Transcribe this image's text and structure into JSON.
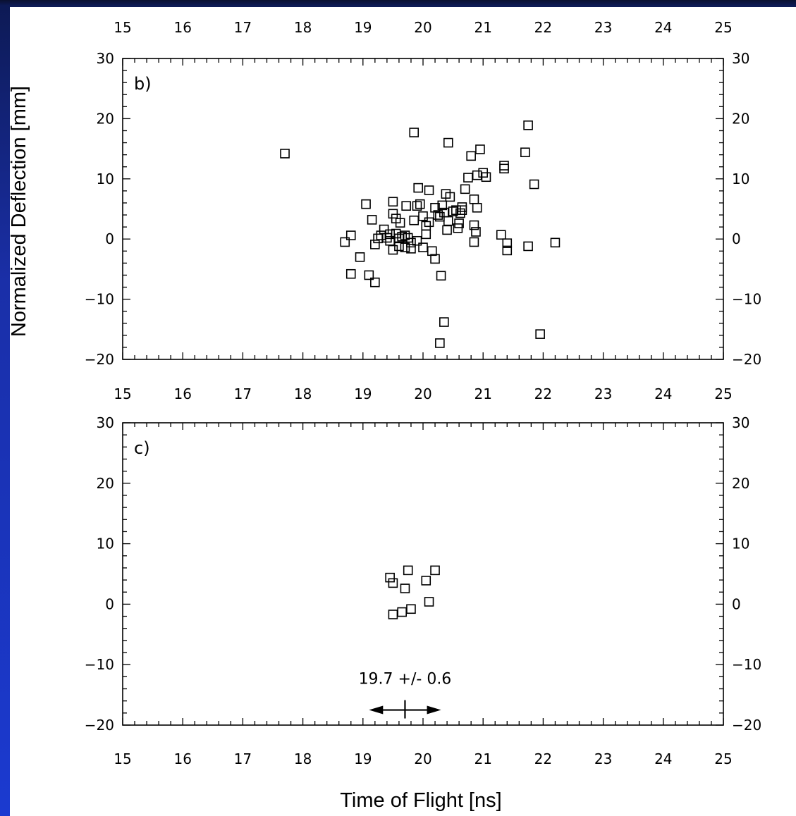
{
  "chart_data": [
    {
      "type": "scatter",
      "panel_label": "b)",
      "marker": "open-square",
      "xlim": [
        15,
        25
      ],
      "ylim": [
        -20,
        30
      ],
      "x_ticks": [
        15,
        16,
        17,
        18,
        19,
        20,
        21,
        22,
        23,
        24,
        25
      ],
      "y_ticks": [
        30,
        20,
        10,
        0,
        -10,
        -20
      ],
      "ylabel": "Normalized Deflection [mm]",
      "points": [
        [
          17.7,
          14.2
        ],
        [
          18.7,
          -0.5
        ],
        [
          18.8,
          0.6
        ],
        [
          18.8,
          -5.8
        ],
        [
          18.95,
          -3.0
        ],
        [
          19.05,
          5.8
        ],
        [
          19.1,
          -6.0
        ],
        [
          19.15,
          3.2
        ],
        [
          19.2,
          -7.2
        ],
        [
          19.2,
          -0.9
        ],
        [
          19.25,
          0.1
        ],
        [
          19.3,
          0.6
        ],
        [
          19.35,
          1.6
        ],
        [
          19.4,
          0.2
        ],
        [
          19.45,
          -0.3
        ],
        [
          19.45,
          0.8
        ],
        [
          19.5,
          6.2
        ],
        [
          19.5,
          4.2
        ],
        [
          19.5,
          -1.8
        ],
        [
          19.55,
          0.9
        ],
        [
          19.55,
          3.4
        ],
        [
          19.6,
          0.1
        ],
        [
          19.6,
          -1.2
        ],
        [
          19.62,
          2.7
        ],
        [
          19.65,
          0.4
        ],
        [
          19.7,
          -1.4
        ],
        [
          19.7,
          0.6
        ],
        [
          19.72,
          5.5
        ],
        [
          19.75,
          0.2
        ],
        [
          19.8,
          -1.6
        ],
        [
          19.8,
          -0.6
        ],
        [
          19.85,
          17.7
        ],
        [
          19.85,
          3.1
        ],
        [
          19.9,
          -0.3
        ],
        [
          19.9,
          5.5
        ],
        [
          19.92,
          8.5
        ],
        [
          19.95,
          5.8
        ],
        [
          20.0,
          -1.4
        ],
        [
          20.0,
          3.8
        ],
        [
          20.05,
          2.2
        ],
        [
          20.05,
          0.8
        ],
        [
          20.1,
          2.8
        ],
        [
          20.1,
          8.1
        ],
        [
          20.15,
          -2.0
        ],
        [
          20.2,
          -3.3
        ],
        [
          20.2,
          5.2
        ],
        [
          20.25,
          4.0
        ],
        [
          20.28,
          3.7
        ],
        [
          20.28,
          -17.3
        ],
        [
          20.3,
          -6.1
        ],
        [
          20.32,
          5.6
        ],
        [
          20.35,
          -13.8
        ],
        [
          20.35,
          4.4
        ],
        [
          20.38,
          7.5
        ],
        [
          20.4,
          1.5
        ],
        [
          20.42,
          3.0
        ],
        [
          20.42,
          16.0
        ],
        [
          20.45,
          7.0
        ],
        [
          20.5,
          4.6
        ],
        [
          20.55,
          4.8
        ],
        [
          20.58,
          1.8
        ],
        [
          20.6,
          2.6
        ],
        [
          20.62,
          4.3
        ],
        [
          20.65,
          5.3
        ],
        [
          20.65,
          4.8
        ],
        [
          20.7,
          8.3
        ],
        [
          20.75,
          10.2
        ],
        [
          20.8,
          13.8
        ],
        [
          20.85,
          2.3
        ],
        [
          20.85,
          -0.5
        ],
        [
          20.85,
          6.6
        ],
        [
          20.88,
          1.2
        ],
        [
          20.9,
          5.2
        ],
        [
          20.9,
          10.6
        ],
        [
          20.95,
          14.9
        ],
        [
          21.0,
          11.0
        ],
        [
          21.05,
          10.3
        ],
        [
          21.3,
          0.7
        ],
        [
          21.35,
          12.2
        ],
        [
          21.35,
          11.7
        ],
        [
          21.4,
          -0.7
        ],
        [
          21.4,
          -1.9
        ],
        [
          21.7,
          14.4
        ],
        [
          21.75,
          18.9
        ],
        [
          21.75,
          -1.2
        ],
        [
          21.85,
          9.1
        ],
        [
          21.95,
          -15.8
        ],
        [
          22.2,
          -0.6
        ]
      ]
    },
    {
      "type": "scatter",
      "panel_label": "c)",
      "marker": "open-square",
      "xlim": [
        15,
        25
      ],
      "ylim": [
        -20,
        30
      ],
      "x_ticks": [
        15,
        16,
        17,
        18,
        19,
        20,
        21,
        22,
        23,
        24,
        25
      ],
      "y_ticks": [
        30,
        20,
        10,
        0,
        -10,
        -20
      ],
      "xlabel": "Time of Flight [ns]",
      "points": [
        [
          19.45,
          4.4
        ],
        [
          19.5,
          3.5
        ],
        [
          19.5,
          -1.7
        ],
        [
          19.65,
          -1.3
        ],
        [
          19.7,
          2.6
        ],
        [
          19.75,
          5.6
        ],
        [
          19.8,
          -0.8
        ],
        [
          20.05,
          3.9
        ],
        [
          20.1,
          0.4
        ],
        [
          20.2,
          5.6
        ]
      ],
      "annotation": {
        "text": "19.7 +/- 0.6",
        "center": 19.7,
        "error": 0.6,
        "y": -17.5
      }
    }
  ]
}
